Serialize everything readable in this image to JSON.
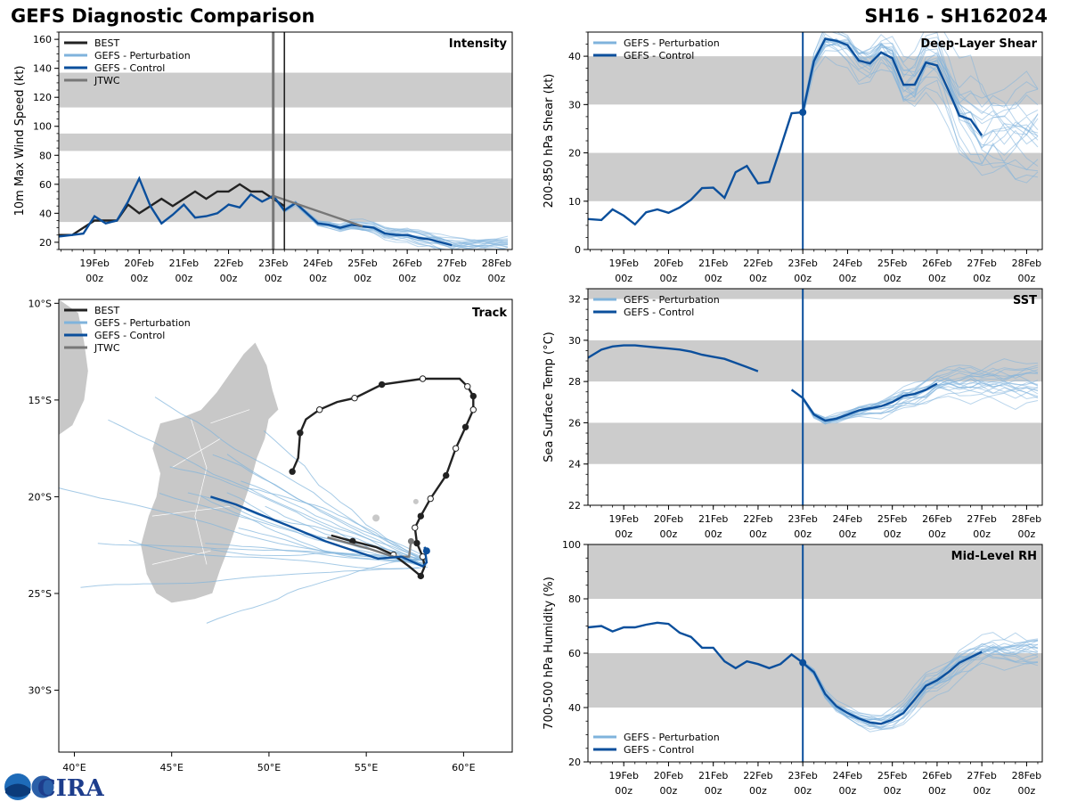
{
  "header": {
    "title_left": "GEFS Diagnostic Comparison",
    "title_right": "SH16 - SH162024"
  },
  "time_axis": {
    "ticks": [
      "19Feb\n00z",
      "20Feb\n00z",
      "21Feb\n00z",
      "22Feb\n00z",
      "23Feb\n00z",
      "24Feb\n00z",
      "25Feb\n00z",
      "26Feb\n00z",
      "27Feb\n00z",
      "28Feb\n00z"
    ],
    "xlim": [
      18.2,
      28.35
    ],
    "init_time": 23.0
  },
  "colors": {
    "best": "#222222",
    "perturbation": "#7fb3dc",
    "control": "#0b4f9c",
    "jtwc": "#777777",
    "band": "#cccccc",
    "land": "#c8c8c8"
  },
  "legend_labels": {
    "best": "BEST",
    "perturbation": "GEFS - Perturbation",
    "control": "GEFS - Control",
    "jtwc": "JTWC"
  },
  "logo": {
    "text": "CIRA"
  },
  "chart_data": [
    {
      "id": "intensity",
      "type": "line",
      "title": "Intensity",
      "ylabel": "10m Max Wind Speed (kt)",
      "ylim": [
        15,
        165
      ],
      "yticks": [
        20,
        40,
        60,
        80,
        100,
        120,
        140,
        160
      ],
      "bands": [
        [
          34,
          64
        ],
        [
          83,
          95
        ],
        [
          113,
          137
        ]
      ],
      "best_x": [
        18.2,
        18.5,
        19.0,
        19.25,
        19.5,
        19.75,
        20.0,
        20.25,
        20.5,
        20.75,
        21.0,
        21.25,
        21.5,
        21.75,
        22.0,
        22.25,
        22.5,
        22.75,
        23.0,
        23.25
      ],
      "best_y": [
        25,
        25,
        35,
        35,
        35,
        46,
        40,
        45,
        50,
        45,
        50,
        55,
        50,
        55,
        55,
        60,
        55,
        55,
        50,
        45
      ],
      "control_x": [
        18.2,
        18.5,
        18.75,
        19.0,
        19.25,
        19.5,
        19.75,
        20.0,
        20.25,
        20.5,
        20.75,
        21.0,
        21.25,
        21.5,
        21.75,
        22.0,
        22.25,
        22.5,
        22.75,
        23.0,
        23.25,
        23.5,
        23.75,
        24.0,
        24.25,
        24.5,
        24.75,
        25.0,
        25.25,
        25.5,
        25.75,
        26.0,
        26.25,
        26.5,
        26.75,
        27.0
      ],
      "control_y": [
        24,
        25,
        26,
        38,
        33,
        35,
        48,
        64,
        45,
        33,
        39,
        46,
        37,
        38,
        40,
        46,
        44,
        53,
        48,
        52,
        42,
        47,
        40,
        33,
        32,
        30,
        32,
        31,
        30,
        26,
        25,
        25,
        23,
        22,
        20,
        18
      ],
      "jtwc_x": [
        23.0,
        25.0
      ],
      "jtwc_y": [
        52,
        31
      ],
      "perturbation_count": 20,
      "perturbation_spread": 4,
      "markers": [
        23.0,
        23.25
      ]
    },
    {
      "id": "shear",
      "type": "line",
      "title": "Deep-Layer Shear",
      "ylabel": "200-850 hPa Shear (kt)",
      "ylim": [
        0,
        45
      ],
      "yticks": [
        0,
        10,
        20,
        30,
        40
      ],
      "bands": [
        [
          10,
          20
        ],
        [
          30,
          40
        ]
      ],
      "control_x": [
        18.2,
        18.5,
        18.75,
        19.0,
        19.25,
        19.5,
        19.75,
        20.0,
        20.25,
        20.5,
        20.75,
        21.0,
        21.25,
        21.5,
        21.75,
        22.0,
        22.25,
        22.5,
        22.75,
        23.0,
        23.25,
        23.5,
        23.75,
        24.0,
        24.25,
        24.5,
        24.75,
        25.0,
        25.25,
        25.5,
        25.75,
        26.0,
        26.25,
        26.5,
        26.75,
        27.0
      ],
      "control_y": [
        6.3,
        6.1,
        8.3,
        7.0,
        5.2,
        7.7,
        8.3,
        7.6,
        8.7,
        10.3,
        12.7,
        12.8,
        10.7,
        16.0,
        17.3,
        13.7,
        14.0,
        21.0,
        28.2,
        28.4,
        39.0,
        43.6,
        43.2,
        42.3,
        39.1,
        38.5,
        40.8,
        39.6,
        34.1,
        34.1,
        38.7,
        38.1,
        33.0,
        27.7,
        26.9,
        23.6
      ],
      "perturbation_count": 20,
      "perturbation_spread": 6,
      "markers": [
        23.0
      ]
    },
    {
      "id": "sst",
      "type": "line",
      "title": "SST",
      "ylabel": "Sea Surface Temp (°C)",
      "ylim": [
        22,
        32.5
      ],
      "yticks": [
        22,
        24,
        26,
        28,
        30,
        32
      ],
      "bands": [
        [
          24,
          26
        ],
        [
          28,
          30
        ],
        [
          32,
          34
        ]
      ],
      "control_x": [
        18.2,
        18.5,
        18.75,
        19.0,
        19.25,
        19.5,
        19.75,
        20.0,
        20.25,
        20.5,
        20.75,
        21.0,
        21.25,
        21.5,
        21.75,
        22.0,
        22.75,
        23.0,
        23.25,
        23.5,
        23.75,
        24.0,
        24.25,
        24.5,
        24.75,
        25.0,
        25.25,
        25.5,
        25.75,
        26.0
      ],
      "control_y": [
        29.15,
        29.55,
        29.7,
        29.75,
        29.75,
        29.7,
        29.65,
        29.6,
        29.55,
        29.45,
        29.3,
        29.2,
        29.1,
        28.9,
        28.7,
        28.5,
        27.6,
        27.2,
        26.4,
        26.1,
        26.2,
        26.4,
        26.6,
        26.7,
        26.8,
        27.0,
        27.3,
        27.4,
        27.6,
        27.9
      ],
      "perturbation_count": 20,
      "perturbation_spread": 0.5,
      "markers": []
    },
    {
      "id": "rh",
      "type": "line",
      "title": "Mid-Level RH",
      "ylabel": "700-500 hPa Humidity (%)",
      "ylim": [
        20,
        100
      ],
      "yticks": [
        20,
        40,
        60,
        80,
        100
      ],
      "bands": [
        [
          40,
          60
        ],
        [
          80,
          100
        ]
      ],
      "control_x": [
        18.2,
        18.5,
        18.75,
        19.0,
        19.25,
        19.5,
        19.75,
        20.0,
        20.25,
        20.5,
        20.75,
        21.0,
        21.25,
        21.5,
        21.75,
        22.0,
        22.25,
        22.5,
        22.75,
        23.0,
        23.25,
        23.5,
        23.75,
        24.0,
        24.25,
        24.5,
        24.75,
        25.0,
        25.25,
        25.5,
        25.75,
        26.0,
        26.25,
        26.5,
        26.75,
        27.0
      ],
      "control_y": [
        69.5,
        70,
        68,
        69.5,
        69.5,
        70.5,
        71.2,
        70.8,
        67.5,
        66,
        62,
        62,
        57,
        54.5,
        57,
        56,
        54.5,
        56,
        59.5,
        56.5,
        53,
        45,
        40.5,
        38,
        36,
        34.5,
        34,
        35.5,
        38,
        43,
        48,
        50,
        53,
        56.5,
        58.5,
        60.5
      ],
      "perturbation_count": 20,
      "perturbation_spread": 4,
      "markers": [
        23.0
      ]
    },
    {
      "id": "track",
      "type": "scatter",
      "title": "Track",
      "xlim": [
        39.2,
        62.5
      ],
      "ylim": [
        -33.2,
        -9.8
      ],
      "xticks": [
        40,
        45,
        50,
        55,
        60
      ],
      "xtick_labels": [
        "40°E",
        "45°E",
        "50°E",
        "55°E",
        "60°E"
      ],
      "yticks": [
        -10,
        -15,
        -20,
        -25,
        -30
      ],
      "ytick_labels": [
        "10°S",
        "15°S",
        "20°S",
        "25°S",
        "30°S"
      ],
      "best_lon": [
        51.2,
        51.5,
        51.6,
        51.9,
        52.6,
        53.5,
        54.4,
        55.8,
        57.9,
        59.8,
        60.2,
        60.5,
        60.5,
        60.1,
        59.6,
        59.1,
        58.3,
        57.8,
        57.5,
        57.6,
        57.9,
        58.0,
        57.8,
        57.2,
        56.4,
        55.5,
        54.3,
        53.2
      ],
      "best_lat": [
        -18.7,
        -18.0,
        -16.7,
        -16.0,
        -15.5,
        -15.1,
        -14.9,
        -14.2,
        -13.9,
        -13.9,
        -14.3,
        -14.8,
        -15.5,
        -16.4,
        -17.5,
        -18.9,
        -20.1,
        -21.0,
        -21.6,
        -22.4,
        -23.1,
        -23.6,
        -24.1,
        -23.6,
        -23.0,
        -22.6,
        -22.3,
        -22.0
      ],
      "best_points_filled": [
        0,
        2,
        7,
        11,
        13,
        15,
        17,
        19,
        22,
        26
      ],
      "control_lon": [
        47.0,
        48.3,
        49.5,
        51.0,
        52.9,
        55.6,
        56.8,
        57.9,
        58.1,
        58.0,
        58.1
      ],
      "control_lat": [
        -20.0,
        -20.4,
        -20.9,
        -21.5,
        -22.3,
        -23.2,
        -23.1,
        -23.6,
        -23.4,
        -22.6,
        -22.8
      ],
      "jtwc_lon": [
        53.0,
        55.2,
        56.4,
        57.2,
        57.3
      ],
      "jtwc_lat": [
        -22.1,
        -22.7,
        -23.1,
        -23.1,
        -22.3
      ],
      "perturbation_count": 22
    }
  ]
}
